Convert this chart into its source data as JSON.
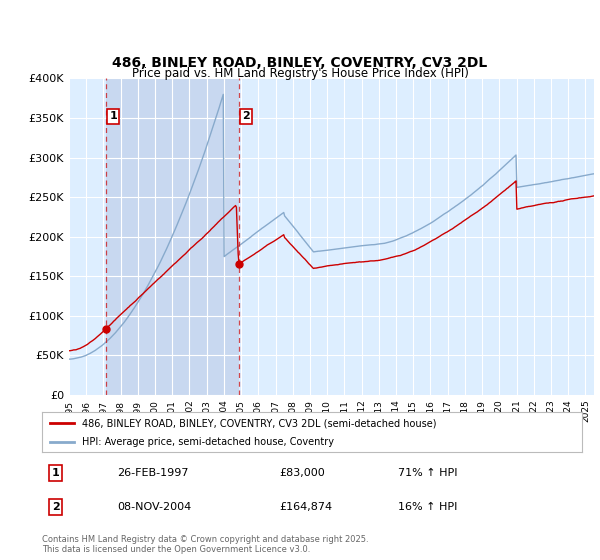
{
  "title": "486, BINLEY ROAD, BINLEY, COVENTRY, CV3 2DL",
  "subtitle": "Price paid vs. HM Land Registry's House Price Index (HPI)",
  "legend_line1": "486, BINLEY ROAD, BINLEY, COVENTRY, CV3 2DL (semi-detached house)",
  "legend_line2": "HPI: Average price, semi-detached house, Coventry",
  "sale1_date": "26-FEB-1997",
  "sale1_price": 83000,
  "sale1_hpi_text": "71% ↑ HPI",
  "sale2_date": "08-NOV-2004",
  "sale2_price": 164874,
  "sale2_hpi_text": "16% ↑ HPI",
  "footer": "Contains HM Land Registry data © Crown copyright and database right 2025.\nThis data is licensed under the Open Government Licence v3.0.",
  "ylim": [
    0,
    400000
  ],
  "yticks": [
    0,
    50000,
    100000,
    150000,
    200000,
    250000,
    300000,
    350000,
    400000
  ],
  "ytick_labels": [
    "£0",
    "£50K",
    "£100K",
    "£150K",
    "£200K",
    "£250K",
    "£300K",
    "£350K",
    "£400K"
  ],
  "plot_bg_color": "#ddeeff",
  "highlight_bg_color": "#c8d8f0",
  "grid_color": "#ffffff",
  "red_line_color": "#cc0000",
  "blue_line_color": "#88aacc",
  "sale_marker_color": "#cc0000",
  "dashed_line_color": "#cc0000",
  "marker_box_color": "#cc0000",
  "fig_bg_color": "#ffffff",
  "sale1_t": 1997.14,
  "sale2_t": 2004.85
}
